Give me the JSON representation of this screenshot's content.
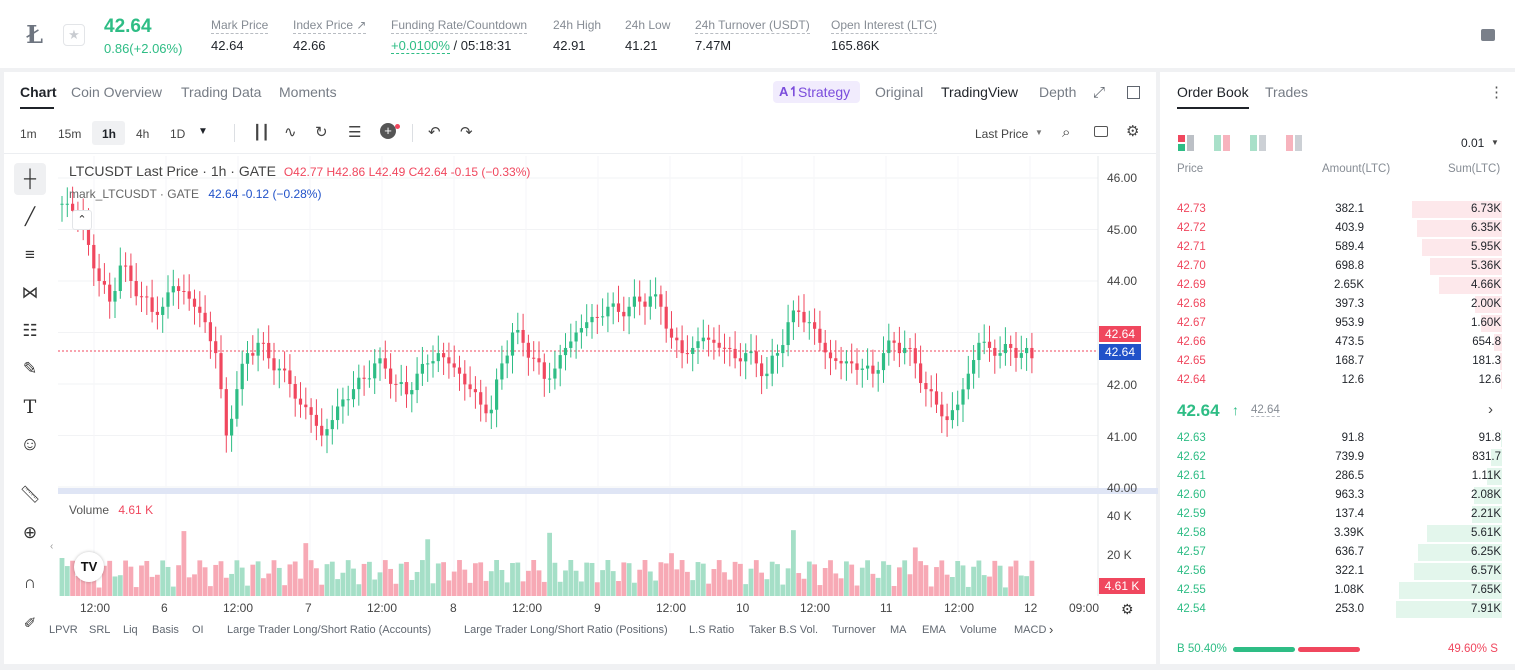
{
  "header": {
    "price": "42.64",
    "change": "0.86(+2.06%)",
    "stats": [
      {
        "label": "Mark Price",
        "value": "42.64"
      },
      {
        "label": "Index Price ↗",
        "value": "42.66"
      },
      {
        "label": "Funding Rate/Countdown",
        "value_rate": "+0.0100%",
        "value_rest": " / 05:18:31"
      },
      {
        "label": "24h High",
        "value": "42.91"
      },
      {
        "label": "24h Low",
        "value": "41.21"
      },
      {
        "label": "24h Turnover (USDT)",
        "value": "7.47M"
      },
      {
        "label": "Open Interest (LTC)",
        "value": "165.86K"
      }
    ]
  },
  "chart_tabs": [
    "Chart",
    "Coin Overview",
    "Trading Data",
    "Moments"
  ],
  "view_tabs": {
    "strategy": "Strategy",
    "original": "Original",
    "tradingview": "TradingView",
    "depth": "Depth"
  },
  "intervals": [
    "1m",
    "15m",
    "1h",
    "4h",
    "1D"
  ],
  "price_type": "Last Price",
  "legend": {
    "symbol": "LTCUSDT Last Price · 1h · GATE",
    "o": "42.77",
    "h": "42.86",
    "l": "42.49",
    "c": "42.64",
    "chg": "-0.15",
    "chg_pct": "(−0.33%)",
    "mark": "mark_LTCUSDT · GATE",
    "mark_val": "42.64",
    "mark_chg": "-0.12",
    "mark_pct": "(−0.28%)"
  },
  "price_axis": [
    "46.00",
    "45.00",
    "44.00",
    "43.00",
    "42.00",
    "41.00",
    "40.00"
  ],
  "price_tag_last": "42.64",
  "price_tag_mark": "42.64",
  "volume": {
    "label": "Volume",
    "value": "4.61 K",
    "axis": [
      "40 K",
      "20 K"
    ],
    "tag": "4.61 K"
  },
  "time_axis": [
    "12:00",
    "6",
    "12:00",
    "7",
    "12:00",
    "8",
    "12:00",
    "9",
    "12:00",
    "10",
    "12:00",
    "11",
    "12:00",
    "12",
    "09:00"
  ],
  "indicators": [
    "LPVR",
    "SRL",
    "Liq",
    "Basis",
    "OI",
    "Large Trader Long/Short Ratio (Accounts)",
    "Large Trader Long/Short Ratio (Positions)",
    "L.S Ratio",
    "Taker B.S Vol.",
    "Turnover",
    "MA",
    "EMA",
    "Volume",
    "MACD"
  ],
  "orderbook": {
    "tabs": [
      "Order Book",
      "Trades"
    ],
    "precision": "0.01",
    "columns": [
      "Price",
      "Amount(LTC)",
      "Sum(LTC)"
    ],
    "asks": [
      {
        "price": "42.73",
        "amount": "382.1",
        "sum": "6.73K",
        "depth": 0.85
      },
      {
        "price": "42.72",
        "amount": "403.9",
        "sum": "6.35K",
        "depth": 0.8
      },
      {
        "price": "42.71",
        "amount": "589.4",
        "sum": "5.95K",
        "depth": 0.75
      },
      {
        "price": "42.70",
        "amount": "698.8",
        "sum": "5.36K",
        "depth": 0.68
      },
      {
        "price": "42.69",
        "amount": "2.65K",
        "sum": "4.66K",
        "depth": 0.59
      },
      {
        "price": "42.68",
        "amount": "397.3",
        "sum": "2.00K",
        "depth": 0.25
      },
      {
        "price": "42.67",
        "amount": "953.9",
        "sum": "1.60K",
        "depth": 0.2
      },
      {
        "price": "42.66",
        "amount": "473.5",
        "sum": "654.8",
        "depth": 0.08
      },
      {
        "price": "42.65",
        "amount": "168.7",
        "sum": "181.3",
        "depth": 0.02
      },
      {
        "price": "42.64",
        "amount": "12.6",
        "sum": "12.6",
        "depth": 0.005
      }
    ],
    "last_price": "42.64",
    "mark_price": "42.64",
    "bids": [
      {
        "price": "42.63",
        "amount": "91.8",
        "sum": "91.8",
        "depth": 0.01
      },
      {
        "price": "42.62",
        "amount": "739.9",
        "sum": "831.7",
        "depth": 0.1
      },
      {
        "price": "42.61",
        "amount": "286.5",
        "sum": "1.11K",
        "depth": 0.14
      },
      {
        "price": "42.60",
        "amount": "963.3",
        "sum": "2.08K",
        "depth": 0.26
      },
      {
        "price": "42.59",
        "amount": "137.4",
        "sum": "2.21K",
        "depth": 0.28
      },
      {
        "price": "42.58",
        "amount": "3.39K",
        "sum": "5.61K",
        "depth": 0.71
      },
      {
        "price": "42.57",
        "amount": "636.7",
        "sum": "6.25K",
        "depth": 0.79
      },
      {
        "price": "42.56",
        "amount": "322.1",
        "sum": "6.57K",
        "depth": 0.83
      },
      {
        "price": "42.55",
        "amount": "1.08K",
        "sum": "7.65K",
        "depth": 0.97
      },
      {
        "price": "42.54",
        "amount": "253.0",
        "sum": "7.91K",
        "depth": 1.0
      }
    ],
    "buy_label": "B 50.40%",
    "sell_label": "49.60% S",
    "buy_ratio": 0.504
  },
  "colors": {
    "up": "#2ebd85",
    "down": "#f0475e",
    "accent": "#7b4ddc",
    "mark_blue": "#2152c9"
  }
}
